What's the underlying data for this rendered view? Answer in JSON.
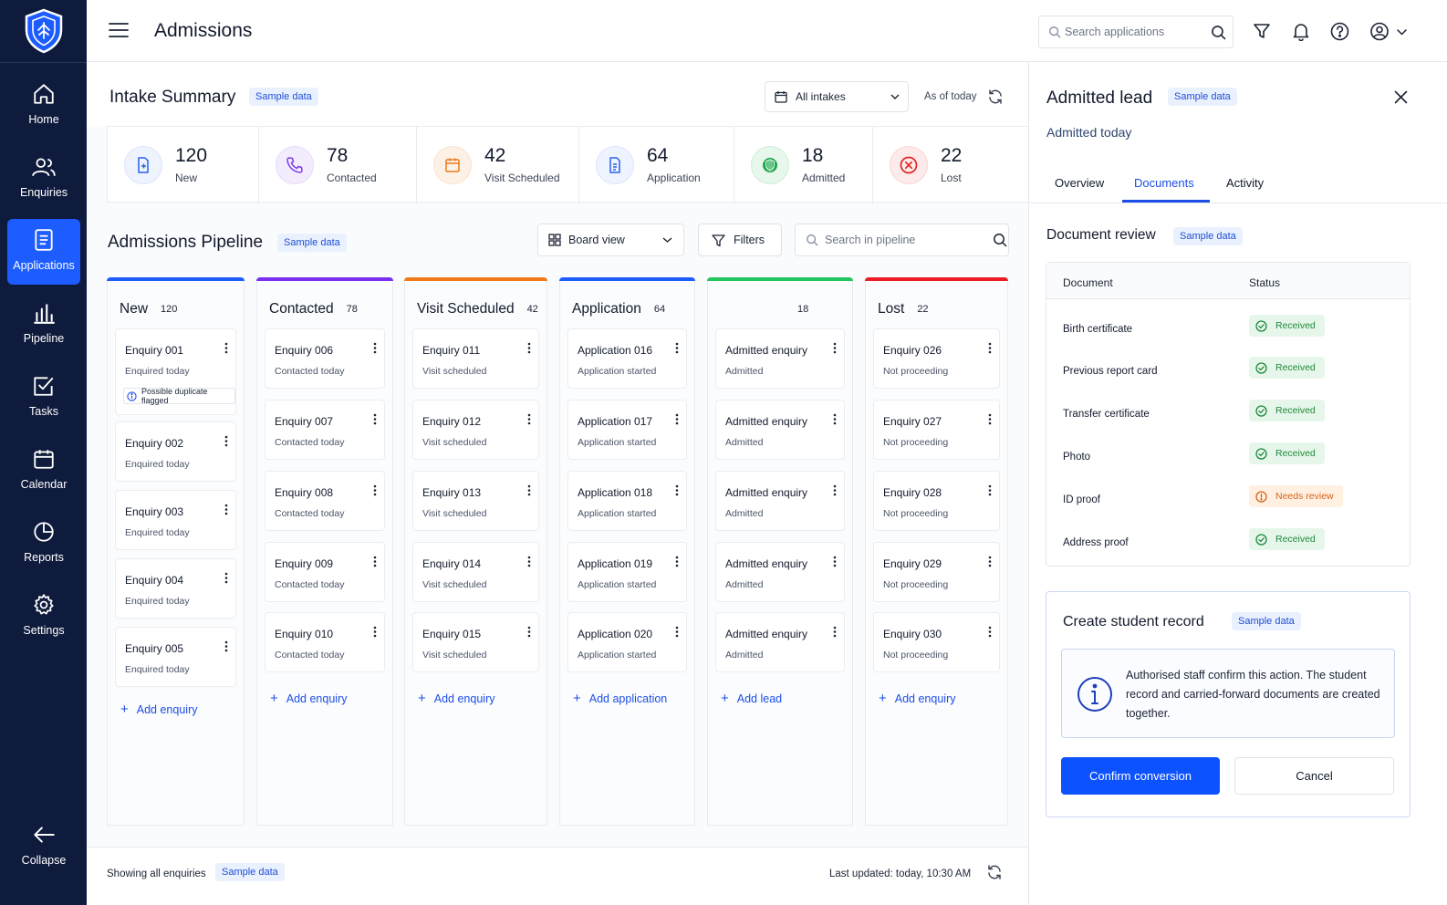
{
  "sidebar": {
    "logo": "shield-logo-icon",
    "items": [
      {
        "label": "Home",
        "icon": "home-icon"
      },
      {
        "label": "Enquiries",
        "icon": "users-icon"
      },
      {
        "label": "Applications",
        "icon": "document-icon",
        "active": true
      },
      {
        "label": "Pipeline",
        "icon": "bar-chart-icon"
      },
      {
        "label": "Tasks",
        "icon": "checkbox-icon"
      },
      {
        "label": "Calendar",
        "icon": "calendar-icon"
      },
      {
        "label": "Reports",
        "icon": "pie-chart-icon"
      },
      {
        "label": "Settings",
        "icon": "gear-icon"
      }
    ],
    "collapse_label": "Collapse"
  },
  "header": {
    "title": "Admissions",
    "search_placeholder": "Search applications"
  },
  "intake": {
    "title": "Intake Summary",
    "badge": "Sample data",
    "filter_value": "All intakes",
    "as_of": "As of today",
    "stats": [
      {
        "value": "120",
        "label": "New",
        "icon": "file-add-icon",
        "color": "#2563eb"
      },
      {
        "value": "78",
        "label": "Contacted",
        "icon": "phone-icon",
        "color": "#7c3aed"
      },
      {
        "value": "42",
        "label": "Visit Scheduled",
        "icon": "calendar-icon",
        "color": "#ea7a1f"
      },
      {
        "value": "64",
        "label": "Application",
        "icon": "document-icon",
        "color": "#2563eb"
      },
      {
        "value": "18",
        "label": "Admitted",
        "icon": "shield-check-icon",
        "color": "#1fa24a"
      },
      {
        "value": "22",
        "label": "Lost",
        "icon": "close-circle-icon",
        "color": "#e02424"
      }
    ]
  },
  "pipeline": {
    "title": "Admissions Pipeline",
    "badge": "Sample data",
    "view_value": "Board view",
    "filters_label": "Filters",
    "search_placeholder": "Search in pipeline",
    "columns": [
      {
        "title": "New",
        "count": "120",
        "color": "#1d5cff",
        "add": "Add enquiry",
        "cards": [
          {
            "title": "Enquiry 001",
            "sub": "Enquired today",
            "flag": "Possible duplicate flagged"
          },
          {
            "title": "Enquiry 002",
            "sub": "Enquired today"
          },
          {
            "title": "Enquiry 003",
            "sub": "Enquired today"
          },
          {
            "title": "Enquiry 004",
            "sub": "Enquired today"
          },
          {
            "title": "Enquiry 005",
            "sub": "Enquired today"
          }
        ]
      },
      {
        "title": "Contacted",
        "count": "78",
        "color": "#7b2ff0",
        "add": "Add enquiry",
        "cards": [
          {
            "title": "Enquiry 006",
            "sub": "Contacted today"
          },
          {
            "title": "Enquiry 007",
            "sub": "Contacted today"
          },
          {
            "title": "Enquiry 008",
            "sub": "Contacted today"
          },
          {
            "title": "Enquiry 009",
            "sub": "Contacted today"
          },
          {
            "title": "Enquiry 010",
            "sub": "Contacted today"
          }
        ]
      },
      {
        "title": "Visit Scheduled",
        "count": "42",
        "color": "#f07a1a",
        "add": "Add enquiry",
        "cards": [
          {
            "title": "Enquiry 011",
            "sub": "Visit scheduled"
          },
          {
            "title": "Enquiry 012",
            "sub": "Visit scheduled"
          },
          {
            "title": "Enquiry 013",
            "sub": "Visit scheduled"
          },
          {
            "title": "Enquiry 014",
            "sub": "Visit scheduled"
          },
          {
            "title": "Enquiry 015",
            "sub": "Visit scheduled"
          }
        ]
      },
      {
        "title": "Application",
        "count": "64",
        "color": "#1d5cff",
        "add": "Add application",
        "cards": [
          {
            "title": "Application 016",
            "sub": "Application started"
          },
          {
            "title": "Application 017",
            "sub": "Application started"
          },
          {
            "title": "Application 018",
            "sub": "Application started"
          },
          {
            "title": "Application 019",
            "sub": "Application started"
          },
          {
            "title": "Application 020",
            "sub": "Application started"
          }
        ]
      },
      {
        "title": "",
        "count": "18",
        "color": "#22c55e",
        "add": "Add lead",
        "cards": [
          {
            "title": "Admitted enquiry",
            "sub": "Admitted"
          },
          {
            "title": "Admitted enquiry",
            "sub": "Admitted"
          },
          {
            "title": "Admitted enquiry",
            "sub": "Admitted"
          },
          {
            "title": "Admitted enquiry",
            "sub": "Admitted"
          },
          {
            "title": "Admitted enquiry",
            "sub": "Admitted"
          }
        ]
      },
      {
        "title": "Lost",
        "count": "22",
        "color": "#ec1c24",
        "add": "Add enquiry",
        "cards": [
          {
            "title": "Enquiry 026",
            "sub": "Not proceeding"
          },
          {
            "title": "Enquiry 027",
            "sub": "Not proceeding"
          },
          {
            "title": "Enquiry 028",
            "sub": "Not proceeding"
          },
          {
            "title": "Enquiry 029",
            "sub": "Not proceeding"
          },
          {
            "title": "Enquiry 030",
            "sub": "Not proceeding"
          }
        ]
      }
    ]
  },
  "footer": {
    "showing": "Showing all enquiries",
    "badge": "Sample data",
    "last_updated": "Last updated: today, 10:30 AM"
  },
  "panel": {
    "title": "Admitted lead",
    "badge": "Sample data",
    "subtitle": "Admitted today",
    "tabs": [
      {
        "label": "Overview"
      },
      {
        "label": "Documents",
        "active": true
      },
      {
        "label": "Activity"
      }
    ],
    "doc_review": {
      "title": "Document review",
      "badge": "Sample data",
      "col_document": "Document",
      "col_status": "Status",
      "rows": [
        {
          "name": "Birth certificate",
          "status": "Received",
          "kind": "ok"
        },
        {
          "name": "Previous report card",
          "status": "Received",
          "kind": "ok"
        },
        {
          "name": "Transfer certificate",
          "status": "Received",
          "kind": "ok"
        },
        {
          "name": "Photo",
          "status": "Received",
          "kind": "ok"
        },
        {
          "name": "ID proof",
          "status": "Needs review",
          "kind": "warn"
        },
        {
          "name": "Address proof",
          "status": "Received",
          "kind": "ok"
        }
      ]
    },
    "create": {
      "title": "Create student record",
      "badge": "Sample data",
      "info": "Authorised staff confirm this action. The student record and carried-forward documents are created together.",
      "confirm_label": "Confirm conversion",
      "cancel_label": "Cancel"
    }
  }
}
